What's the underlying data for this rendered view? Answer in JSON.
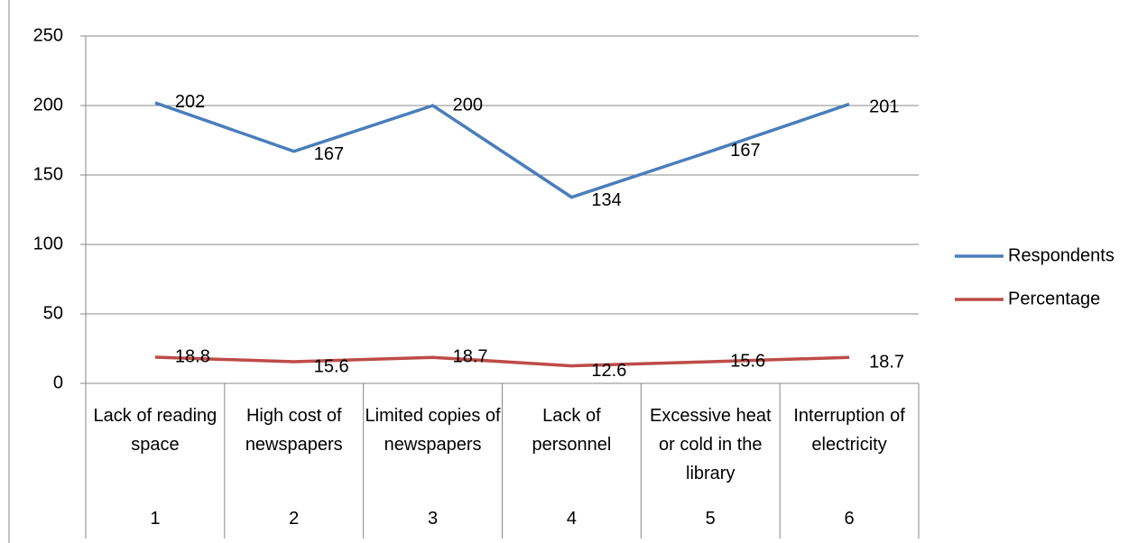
{
  "chart_data": {
    "type": "line",
    "categories": [
      "Lack of reading space",
      "High cost of newspapers",
      "Limited copies of newspapers",
      "Lack of personnel",
      "Excessive heat or cold in the library",
      "Interruption of electricity"
    ],
    "category_numbers": [
      1,
      2,
      3,
      4,
      5,
      6
    ],
    "series": [
      {
        "name": "Respondents",
        "color": "#4a7ebb",
        "values": [
          202,
          167,
          200,
          134,
          167,
          201
        ]
      },
      {
        "name": "Percentage",
        "color": "#be4b48",
        "values": [
          18.8,
          15.6,
          18.7,
          12.6,
          15.6,
          18.7
        ]
      }
    ],
    "ylim": [
      0,
      250
    ],
    "yticks": [
      0,
      50,
      100,
      150,
      200,
      250
    ],
    "grid": true,
    "legend": "right"
  }
}
